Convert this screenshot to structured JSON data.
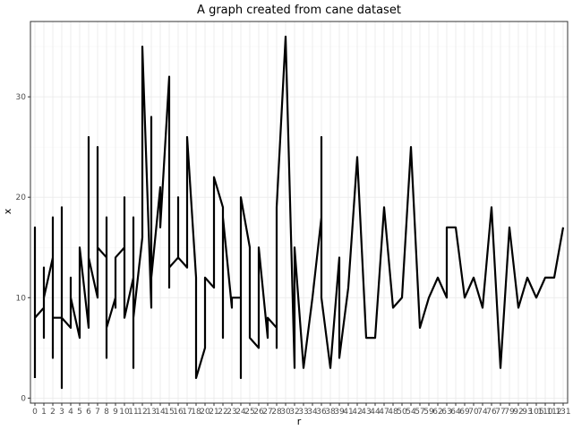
{
  "chart_data": {
    "type": "line",
    "title": "A graph created from cane dataset",
    "xlabel": "r",
    "ylabel": "x",
    "ylim": [
      -0.5,
      37.5
    ],
    "y_ticks": [
      0,
      10,
      20,
      30
    ],
    "grid": true,
    "x_categories": [
      "0",
      "1",
      "2",
      "3",
      "4",
      "5",
      "6",
      "7",
      "8",
      "9",
      "10",
      "11",
      "12",
      "13",
      "14",
      "15",
      "16",
      "17",
      "18",
      "20",
      "21",
      "22",
      "23",
      "24",
      "25",
      "26",
      "27",
      "28",
      "30",
      "32",
      "33",
      "34",
      "36",
      "38",
      "39",
      "41",
      "42",
      "43",
      "44",
      "47",
      "48",
      "50",
      "54",
      "57",
      "59",
      "62",
      "63",
      "64",
      "69",
      "70",
      "74",
      "76",
      "77",
      "79",
      "92",
      "93",
      "105",
      "110",
      "112",
      "131"
    ],
    "x_tick_labels": [
      "0",
      "1",
      "2",
      "3",
      "4",
      "5",
      "6",
      "7",
      "8",
      "9",
      "10",
      "11",
      "12",
      "13",
      "14",
      "15",
      "16",
      "17",
      "18",
      "20",
      "21",
      "22",
      "23",
      "24",
      "25",
      "26",
      "27",
      "28",
      "30",
      "32",
      "33",
      "34",
      "36",
      "38",
      "39",
      "41",
      "42",
      "43",
      "44",
      "47",
      "48",
      "50",
      "54",
      "57",
      "59",
      "62",
      "63",
      "64",
      "69",
      "70",
      "74",
      "76",
      "77",
      "79",
      "92",
      "93",
      "105",
      "110",
      "112",
      "131"
    ],
    "points": [
      [
        "0",
        2
      ],
      [
        "0",
        17
      ],
      [
        "0",
        8
      ],
      [
        "1",
        9
      ],
      [
        "1",
        6
      ],
      [
        "1",
        13
      ],
      [
        "1",
        10
      ],
      [
        "2",
        14
      ],
      [
        "2",
        4
      ],
      [
        "2",
        18
      ],
      [
        "2",
        8
      ],
      [
        "3",
        8
      ],
      [
        "3",
        1
      ],
      [
        "3",
        19
      ],
      [
        "3",
        8
      ],
      [
        "4",
        7
      ],
      [
        "4",
        12
      ],
      [
        "4",
        10
      ],
      [
        "5",
        6
      ],
      [
        "5",
        15
      ],
      [
        "6",
        7
      ],
      [
        "6",
        26
      ],
      [
        "6",
        14
      ],
      [
        "7",
        10
      ],
      [
        "7",
        25
      ],
      [
        "7",
        15
      ],
      [
        "8",
        14
      ],
      [
        "8",
        4
      ],
      [
        "8",
        18
      ],
      [
        "8",
        7
      ],
      [
        "9",
        10
      ],
      [
        "9",
        9
      ],
      [
        "9",
        14
      ],
      [
        "10",
        15
      ],
      [
        "10",
        20
      ],
      [
        "10",
        8
      ],
      [
        "11",
        12
      ],
      [
        "11",
        3
      ],
      [
        "11",
        18
      ],
      [
        "11",
        8
      ],
      [
        "12",
        16
      ],
      [
        "12",
        35
      ],
      [
        "13",
        9
      ],
      [
        "13",
        28
      ],
      [
        "13",
        12
      ],
      [
        "14",
        21
      ],
      [
        "14",
        17
      ],
      [
        "15",
        32
      ],
      [
        "15",
        11
      ],
      [
        "15",
        13
      ],
      [
        "16",
        14
      ],
      [
        "16",
        20
      ],
      [
        "16",
        14
      ],
      [
        "17",
        13
      ],
      [
        "17",
        26
      ],
      [
        "18",
        12
      ],
      [
        "18",
        2
      ],
      [
        "20",
        5
      ],
      [
        "20",
        12
      ],
      [
        "21",
        11
      ],
      [
        "21",
        22
      ],
      [
        "22",
        19
      ],
      [
        "22",
        6
      ],
      [
        "22",
        18
      ],
      [
        "23",
        9
      ],
      [
        "23",
        10
      ],
      [
        "24",
        10
      ],
      [
        "24",
        2
      ],
      [
        "24",
        20
      ],
      [
        "25",
        15
      ],
      [
        "25",
        6
      ],
      [
        "26",
        5
      ],
      [
        "26",
        15
      ],
      [
        "27",
        6
      ],
      [
        "27",
        8
      ],
      [
        "28",
        7
      ],
      [
        "28",
        5
      ],
      [
        "28",
        19
      ],
      [
        "30",
        36
      ],
      [
        "32",
        3
      ],
      [
        "32",
        15
      ],
      [
        "33",
        3
      ],
      [
        "34",
        10
      ],
      [
        "36",
        18
      ],
      [
        "36",
        26
      ],
      [
        "36",
        10
      ],
      [
        "38",
        3
      ],
      [
        "39",
        14
      ],
      [
        "39",
        4
      ],
      [
        "41",
        11
      ],
      [
        "42",
        24
      ],
      [
        "43",
        6
      ],
      [
        "44",
        6
      ],
      [
        "47",
        19
      ],
      [
        "48",
        9
      ],
      [
        "50",
        10
      ],
      [
        "54",
        25
      ],
      [
        "57",
        7
      ],
      [
        "59",
        10
      ],
      [
        "62",
        12
      ],
      [
        "63",
        10
      ],
      [
        "63",
        17
      ],
      [
        "64",
        17
      ],
      [
        "69",
        10
      ],
      [
        "70",
        12
      ],
      [
        "74",
        9
      ],
      [
        "76",
        19
      ],
      [
        "77",
        3
      ],
      [
        "79",
        17
      ],
      [
        "92",
        9
      ],
      [
        "93",
        12
      ],
      [
        "105",
        10
      ],
      [
        "110",
        12
      ],
      [
        "112",
        12
      ],
      [
        "131",
        17
      ]
    ]
  }
}
